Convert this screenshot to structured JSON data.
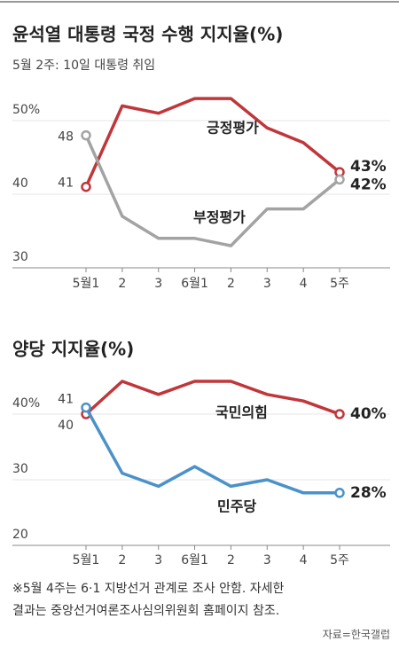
{
  "charts": [
    {
      "chart_data": {
        "type": "line",
        "title": "윤석열 대통령 국정 수행 지지율(%)",
        "subtitle": "5월 2주: 10일 대통령 취임",
        "categories": [
          "5월1",
          "2",
          "3",
          "6월1",
          "2",
          "3",
          "4",
          "5주"
        ],
        "ylim": [
          30,
          55
        ],
        "yticks": [
          30,
          40,
          {
            "value": 50,
            "label": "50%"
          }
        ],
        "grid": true,
        "series": [
          {
            "name": "긍정평가",
            "color": "#c0363a",
            "values": [
              41,
              52,
              51,
              53,
              53,
              49,
              47,
              43
            ],
            "value_labels": [
              null,
              null,
              null,
              null,
              null,
              null,
              null,
              "43%"
            ]
          },
          {
            "name": "부정평가",
            "color": "#a3a3a3",
            "values": [
              48,
              37,
              34,
              34,
              33,
              38,
              38,
              42
            ],
            "value_labels": [
              null,
              null,
              null,
              null,
              null,
              null,
              null,
              "42%"
            ]
          }
        ]
      }
    },
    {
      "chart_data": {
        "type": "line",
        "title": "양당 지지율(%)",
        "categories": [
          "5월1",
          "2",
          "3",
          "6월1",
          "2",
          "3",
          "4",
          "5주"
        ],
        "ylim": [
          20,
          46
        ],
        "yticks": [
          20,
          30,
          {
            "value": 40,
            "label": "40%"
          }
        ],
        "grid": true,
        "series": [
          {
            "name": "국민의힘",
            "color": "#c0363a",
            "values": [
              40,
              45,
              43,
              45,
              45,
              43,
              42,
              40
            ],
            "value_labels": [
              null,
              null,
              null,
              null,
              null,
              null,
              null,
              "40%"
            ]
          },
          {
            "name": "민주당",
            "color": "#4a92c9",
            "values": [
              41,
              31,
              29,
              32,
              29,
              30,
              28,
              28
            ],
            "value_labels": [
              null,
              null,
              null,
              null,
              null,
              null,
              null,
              "28%"
            ]
          }
        ]
      }
    }
  ],
  "footnote": [
    "※5월 4주는 6·1 지방선거 관계로 조사 안함. 자세한",
    "결과는 중앙선거여론조사심의위원회 홈페이지 참조."
  ],
  "source": "자료=한국갤럽"
}
